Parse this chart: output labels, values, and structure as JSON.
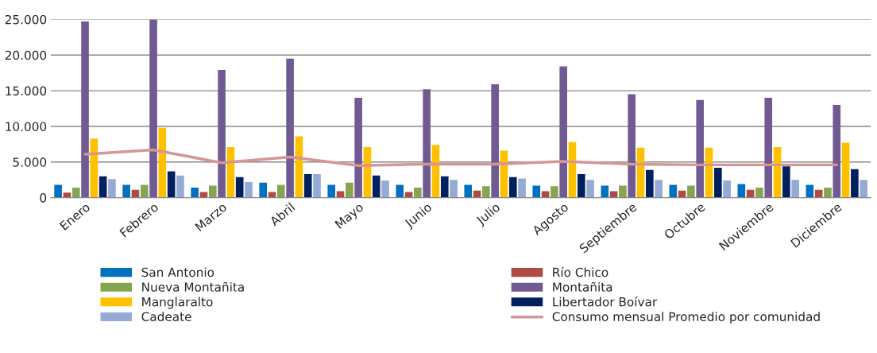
{
  "chart_data": {
    "type": "bar",
    "categories": [
      "Enero",
      "Febrero",
      "Marzo",
      "Abril",
      "Mayo",
      "Junio",
      "Julio",
      "Agosto",
      "Septiembre",
      "Octubre",
      "Noviembre",
      "Diciembre"
    ],
    "series": [
      {
        "name": "San Antonio",
        "color": "#0070c0",
        "values": [
          1800,
          1800,
          1400,
          2100,
          1800,
          1800,
          1800,
          1700,
          1700,
          1800,
          1900,
          1800
        ]
      },
      {
        "name": "Río Chico",
        "color": "#b04a45",
        "values": [
          700,
          1100,
          800,
          800,
          900,
          800,
          1000,
          900,
          900,
          1000,
          1100,
          1100
        ]
      },
      {
        "name": "Nueva Montañita",
        "color": "#86a550",
        "values": [
          1400,
          1800,
          1700,
          1800,
          2100,
          1400,
          1600,
          1600,
          1700,
          1700,
          1400,
          1400
        ]
      },
      {
        "name": "Montañita",
        "color": "#715a91",
        "values": [
          24700,
          25000,
          17900,
          19500,
          14000,
          15200,
          15900,
          18400,
          14500,
          13700,
          14000,
          13000
        ]
      },
      {
        "name": "Manglaralto",
        "color": "#ffc000",
        "values": [
          8300,
          9800,
          7100,
          8600,
          7100,
          7400,
          6600,
          7800,
          7000,
          7000,
          7100,
          7700
        ]
      },
      {
        "name": "Libertador Boívar",
        "color": "#002060",
        "values": [
          3000,
          3700,
          2900,
          3300,
          3100,
          3000,
          2900,
          3300,
          3900,
          4200,
          4400,
          4000
        ]
      },
      {
        "name": "Cadeate",
        "color": "#95abd5",
        "values": [
          2600,
          3100,
          2200,
          3300,
          2400,
          2500,
          2700,
          2500,
          2500,
          2400,
          2500,
          2500
        ]
      },
      {
        "name": "Consumo mensual Promedio por comunidad",
        "type": "line",
        "color": "#d49696",
        "values": [
          6100,
          6700,
          4900,
          5700,
          4500,
          4700,
          4700,
          5100,
          4700,
          4600,
          4600,
          4600
        ]
      }
    ],
    "ylim": [
      0,
      25000
    ],
    "yticks": [
      0,
      {
        "value": 5000,
        "label": "5.000"
      },
      {
        "value": 10000,
        "label": "10.000"
      },
      {
        "value": 15000,
        "label": "15.000"
      },
      {
        "value": 20000,
        "label": "20.000"
      },
      {
        "value": 25000,
        "label": "25.000"
      }
    ],
    "grid": "y",
    "legend": "bottom",
    "marker": "none",
    "line_style": "solid"
  }
}
